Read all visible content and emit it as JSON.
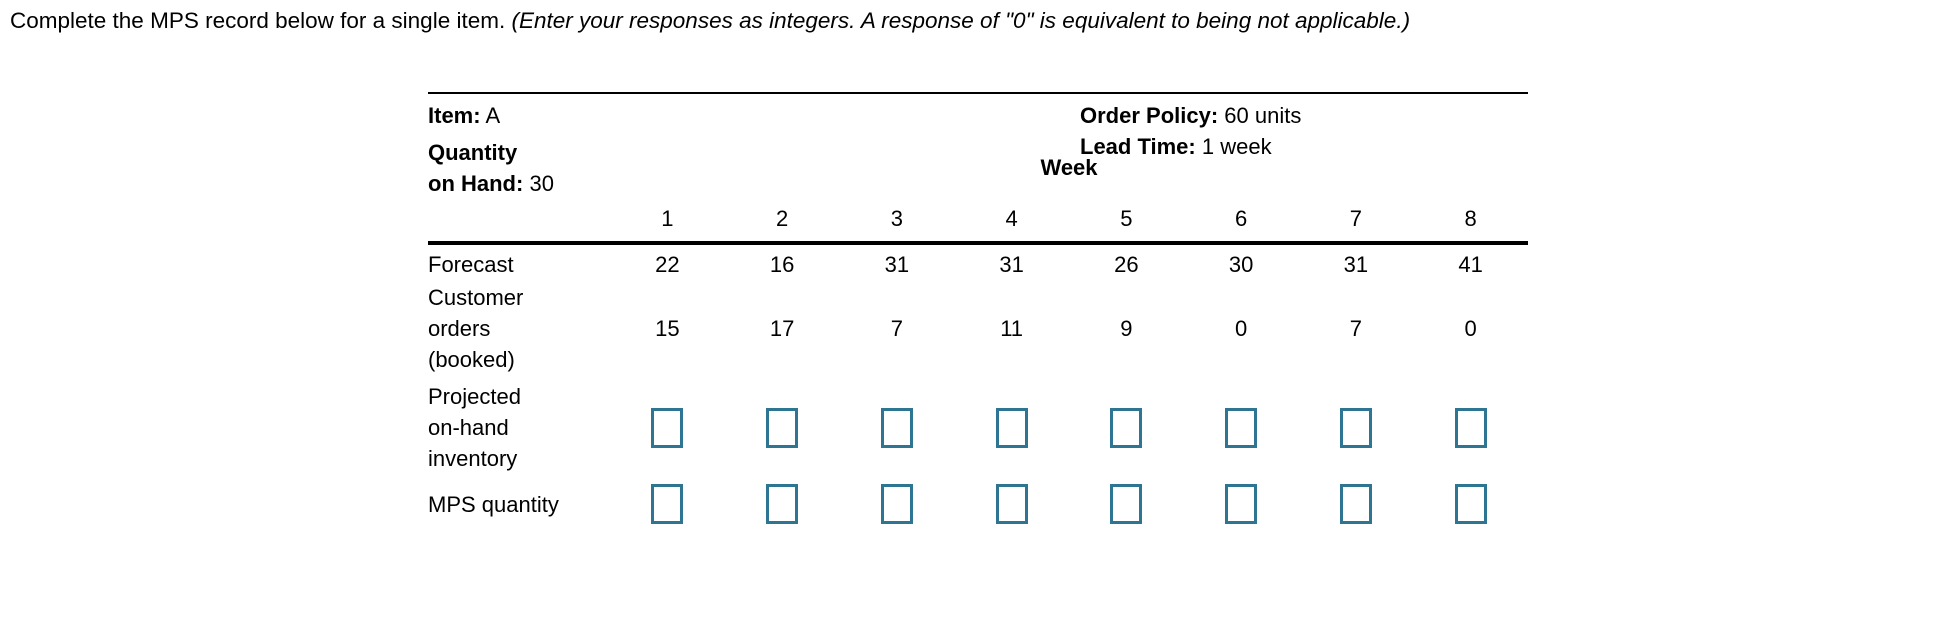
{
  "instruction": {
    "main": "Complete the MPS record below for a single item.",
    "italic": " (Enter your responses as integers. A response of \"0\" is equivalent to being not applicable.)"
  },
  "record": {
    "item_label": "Item:",
    "item_value": "A",
    "order_policy_label": "Order Policy:",
    "order_policy_value": "60 units",
    "lead_time_label": "Lead Time:",
    "lead_time_value": "1 week",
    "quantity_on_hand_label_line1": "Quantity",
    "quantity_on_hand_label_line2": "on Hand:",
    "quantity_on_hand_value": "30",
    "week_header": "Week"
  },
  "table": {
    "weeks": [
      "1",
      "2",
      "3",
      "4",
      "5",
      "6",
      "7",
      "8"
    ],
    "rows": [
      {
        "key": "forecast",
        "label_lines": [
          "Forecast"
        ],
        "type": "values",
        "values": [
          "22",
          "16",
          "31",
          "31",
          "26",
          "30",
          "31",
          "41"
        ]
      },
      {
        "key": "customer-orders",
        "label_lines": [
          "Customer",
          "orders",
          "(booked)"
        ],
        "type": "values",
        "values": [
          "15",
          "17",
          "7",
          "11",
          "9",
          "0",
          "7",
          "0"
        ]
      },
      {
        "key": "projected-on-hand-inventory",
        "label_lines": [
          "Projected",
          "on-hand",
          "inventory"
        ],
        "type": "inputs",
        "values": [
          "",
          "",
          "",
          "",
          "",
          "",
          "",
          ""
        ]
      },
      {
        "key": "mps-quantity",
        "label_lines": [
          "MPS quantity"
        ],
        "type": "inputs",
        "values": [
          "",
          "",
          "",
          "",
          "",
          "",
          "",
          ""
        ]
      }
    ]
  },
  "colors": {
    "input_border": "#2e7593",
    "rule": "#000000",
    "text": "#000000"
  }
}
